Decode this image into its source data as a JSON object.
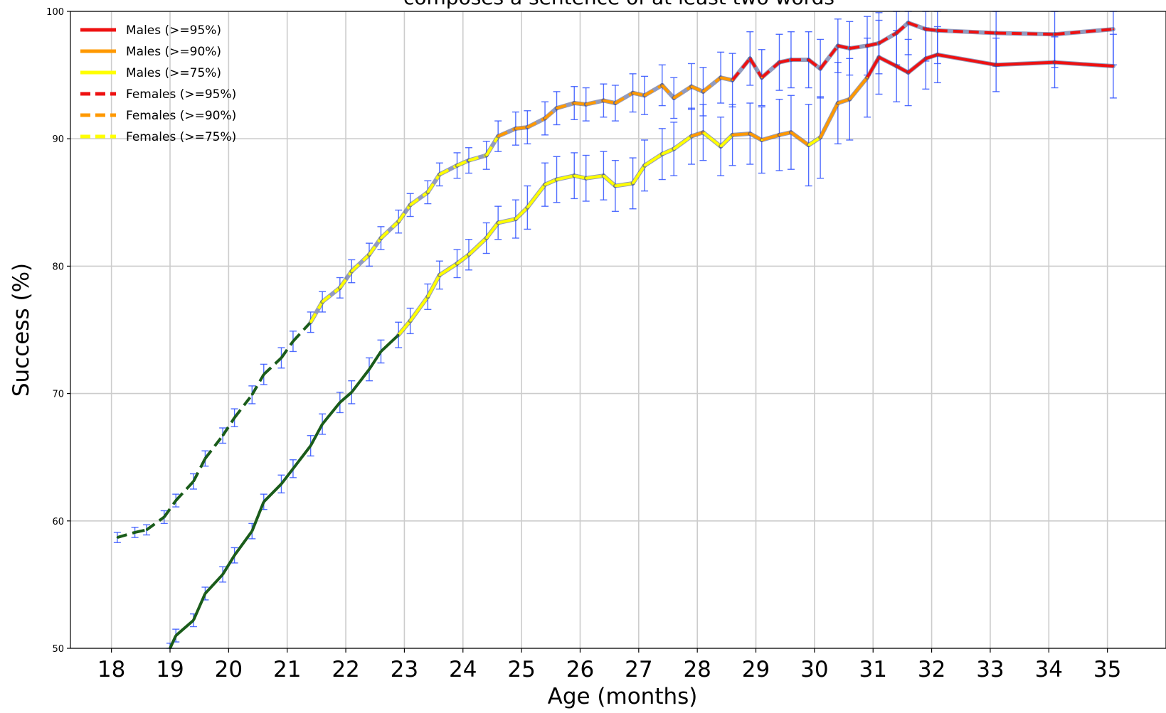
{
  "chart_data": {
    "type": "line",
    "title": "composes a sentence of at least two words",
    "xlabel": "Age (months)",
    "ylabel": "Success (%)",
    "xlim": [
      17.3,
      36.0
    ],
    "ylim": [
      50,
      100
    ],
    "x_ticks": [
      "18",
      "19",
      "20",
      "21",
      "22",
      "23",
      "24",
      "25",
      "26",
      "27",
      "28",
      "29",
      "30",
      "31",
      "32",
      "33",
      "34",
      "35"
    ],
    "y_ticks": [
      "50",
      "60",
      "70",
      "80",
      "90",
      "100"
    ],
    "grid": true,
    "legend_position": "top-left",
    "legend": [
      {
        "label": "Males (>=95%)",
        "color": "#ee1111",
        "dash": "solid"
      },
      {
        "label": "Males (>=90%)",
        "color": "#ff9900",
        "dash": "solid"
      },
      {
        "label": "Males (>=75%)",
        "color": "#ffff00",
        "dash": "solid"
      },
      {
        "label": "Females (>=95%)",
        "color": "#ee1111",
        "dash": "dashed"
      },
      {
        "label": "Females (>=90%)",
        "color": "#ff9900",
        "dash": "dashed"
      },
      {
        "label": "Females (>=75%)",
        "color": "#ffff00",
        "dash": "dashed"
      }
    ],
    "colors": {
      "below_threshold": "#1a5c1a",
      "error_bar": "#3355ff",
      "grid": "#cccccc"
    },
    "series": [
      {
        "dash": "dashed",
        "points": [
          [
            18.1,
            58.7,
            0.4
          ],
          [
            18.4,
            59.1,
            0.4
          ],
          [
            18.6,
            59.3,
            0.4
          ],
          [
            18.9,
            60.3,
            0.5
          ],
          [
            19.1,
            61.6,
            0.5
          ],
          [
            19.4,
            63.1,
            0.6
          ],
          [
            19.6,
            64.9,
            0.6
          ],
          [
            19.9,
            66.7,
            0.6
          ],
          [
            20.1,
            68.1,
            0.7
          ],
          [
            20.4,
            69.9,
            0.7
          ],
          [
            20.6,
            71.5,
            0.8
          ],
          [
            20.9,
            72.8,
            0.8
          ],
          [
            21.1,
            74.1,
            0.8
          ],
          [
            21.4,
            75.6,
            0.8
          ],
          [
            21.6,
            77.2,
            0.8
          ],
          [
            21.9,
            78.3,
            0.8
          ],
          [
            22.1,
            79.6,
            0.9
          ],
          [
            22.4,
            80.9,
            0.9
          ],
          [
            22.6,
            82.2,
            0.9
          ],
          [
            22.9,
            83.5,
            0.9
          ],
          [
            23.1,
            84.8,
            0.9
          ],
          [
            23.4,
            85.8,
            0.9
          ],
          [
            23.6,
            87.2,
            0.9
          ],
          [
            23.9,
            87.9,
            1.0
          ],
          [
            24.1,
            88.3,
            1.0
          ],
          [
            24.4,
            88.7,
            1.1
          ],
          [
            24.6,
            90.2,
            1.2
          ],
          [
            24.9,
            90.8,
            1.3
          ],
          [
            25.1,
            90.9,
            1.3
          ],
          [
            25.4,
            91.6,
            1.3
          ],
          [
            25.6,
            92.4,
            1.3
          ],
          [
            25.9,
            92.8,
            1.3
          ],
          [
            26.1,
            92.7,
            1.3
          ],
          [
            26.4,
            93.0,
            1.3
          ],
          [
            26.6,
            92.8,
            1.4
          ],
          [
            26.9,
            93.6,
            1.5
          ],
          [
            27.1,
            93.4,
            1.5
          ],
          [
            27.4,
            94.2,
            1.6
          ],
          [
            27.6,
            93.2,
            1.6
          ],
          [
            27.9,
            94.1,
            1.8
          ],
          [
            28.1,
            93.7,
            1.9
          ],
          [
            28.4,
            94.8,
            2.0
          ],
          [
            28.6,
            94.6,
            2.1
          ],
          [
            28.9,
            96.3,
            2.1
          ],
          [
            29.1,
            94.8,
            2.2
          ],
          [
            29.4,
            96.0,
            2.2
          ],
          [
            29.6,
            96.2,
            2.2
          ],
          [
            29.9,
            96.2,
            2.2
          ],
          [
            30.1,
            95.5,
            2.3
          ],
          [
            30.4,
            97.3,
            2.1
          ],
          [
            30.6,
            97.1,
            2.1
          ],
          [
            30.9,
            97.3,
            2.3
          ],
          [
            31.1,
            97.5,
            2.4
          ],
          [
            31.4,
            98.3,
            2.5
          ],
          [
            31.6,
            99.1,
            2.5
          ],
          [
            31.9,
            98.6,
            2.5
          ],
          [
            32.1,
            98.5,
            2.6
          ],
          [
            33.1,
            98.3,
            2.6
          ],
          [
            34.1,
            98.2,
            2.6
          ],
          [
            35.1,
            98.6,
            2.8
          ]
        ]
      },
      {
        "dash": "solid",
        "points": [
          [
            19.0,
            50.0,
            0.4
          ],
          [
            19.1,
            51.0,
            0.5
          ],
          [
            19.4,
            52.2,
            0.5
          ],
          [
            19.6,
            54.3,
            0.5
          ],
          [
            19.9,
            55.8,
            0.6
          ],
          [
            20.1,
            57.3,
            0.6
          ],
          [
            20.4,
            59.2,
            0.6
          ],
          [
            20.6,
            61.5,
            0.6
          ],
          [
            20.9,
            62.9,
            0.7
          ],
          [
            21.1,
            64.1,
            0.7
          ],
          [
            21.4,
            65.9,
            0.8
          ],
          [
            21.6,
            67.6,
            0.8
          ],
          [
            21.9,
            69.3,
            0.8
          ],
          [
            22.1,
            70.1,
            0.9
          ],
          [
            22.4,
            71.9,
            0.9
          ],
          [
            22.6,
            73.3,
            0.9
          ],
          [
            22.9,
            74.6,
            1.0
          ],
          [
            23.1,
            75.7,
            1.0
          ],
          [
            23.4,
            77.6,
            1.0
          ],
          [
            23.6,
            79.3,
            1.1
          ],
          [
            23.9,
            80.2,
            1.1
          ],
          [
            24.1,
            80.9,
            1.2
          ],
          [
            24.4,
            82.2,
            1.2
          ],
          [
            24.6,
            83.4,
            1.3
          ],
          [
            24.9,
            83.7,
            1.5
          ],
          [
            25.1,
            84.6,
            1.7
          ],
          [
            25.4,
            86.4,
            1.7
          ],
          [
            25.6,
            86.8,
            1.8
          ],
          [
            25.9,
            87.1,
            1.8
          ],
          [
            26.1,
            86.9,
            1.8
          ],
          [
            26.4,
            87.1,
            1.9
          ],
          [
            26.6,
            86.3,
            2.0
          ],
          [
            26.9,
            86.5,
            2.0
          ],
          [
            27.1,
            87.9,
            2.0
          ],
          [
            27.4,
            88.8,
            2.0
          ],
          [
            27.6,
            89.2,
            2.1
          ],
          [
            27.9,
            90.2,
            2.2
          ],
          [
            28.1,
            90.5,
            2.2
          ],
          [
            28.4,
            89.4,
            2.3
          ],
          [
            28.6,
            90.3,
            2.4
          ],
          [
            28.9,
            90.4,
            2.4
          ],
          [
            29.1,
            89.9,
            2.6
          ],
          [
            29.4,
            90.3,
            2.8
          ],
          [
            29.6,
            90.5,
            2.9
          ],
          [
            29.9,
            89.5,
            3.2
          ],
          [
            30.1,
            90.1,
            3.2
          ],
          [
            30.4,
            92.8,
            3.2
          ],
          [
            30.6,
            93.1,
            3.2
          ],
          [
            30.9,
            94.8,
            3.1
          ],
          [
            31.1,
            96.4,
            2.9
          ],
          [
            31.4,
            95.7,
            2.8
          ],
          [
            31.6,
            95.2,
            2.6
          ],
          [
            31.9,
            96.3,
            2.4
          ],
          [
            32.1,
            96.6,
            2.2
          ],
          [
            33.1,
            95.8,
            2.1
          ],
          [
            34.1,
            96.0,
            2.0
          ],
          [
            35.1,
            95.7,
            2.5
          ]
        ]
      }
    ]
  }
}
